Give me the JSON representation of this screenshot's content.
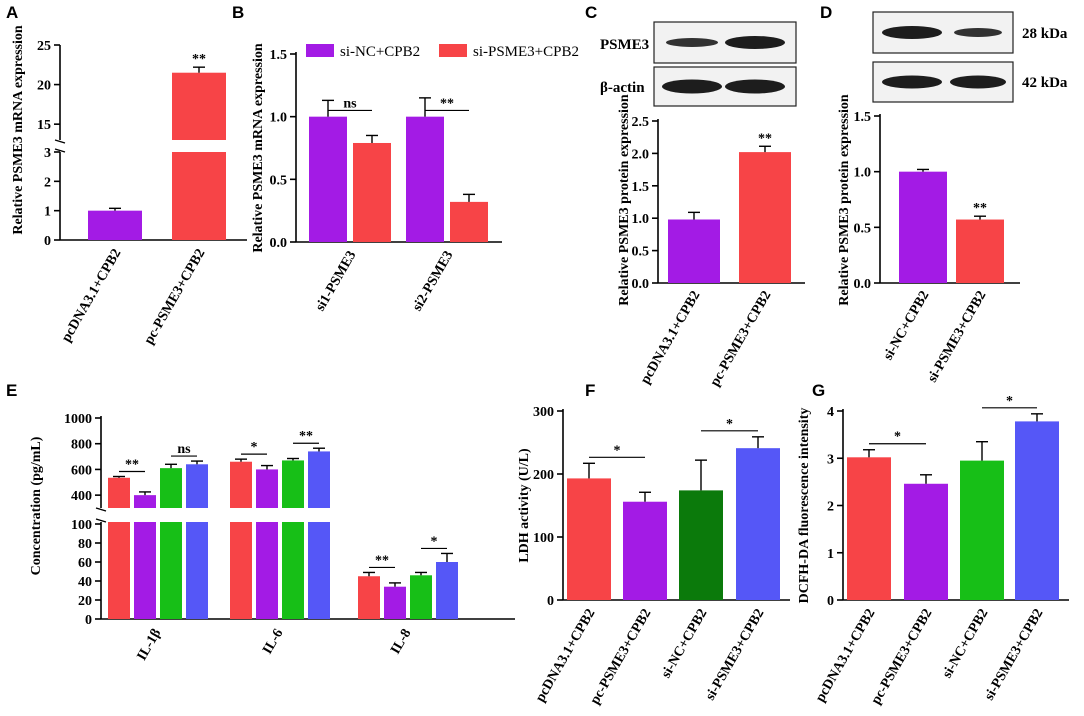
{
  "colors": {
    "red": "#f74447",
    "purple": "#a31be5",
    "green": "#17bf17",
    "blue": "#5557f7",
    "dkgreen": "#0b7a0b"
  },
  "panels": {
    "A": "A",
    "B": "B",
    "C": "C",
    "D": "D",
    "E": "E",
    "F": "F",
    "G": "G"
  },
  "chart_data": [
    {
      "id": "A",
      "type": "bar",
      "ylabel": "Relative PSME3 mRNA expression",
      "categories": [
        "pcDNA3.1+CPB2",
        "pc-PSME3+CPB2"
      ],
      "values": [
        1.0,
        21.5
      ],
      "errors": [
        0.08,
        0.7
      ],
      "ylim": [
        0,
        25
      ],
      "axis_break": [
        3,
        13
      ],
      "yticks_low": [
        0,
        1,
        2,
        3
      ],
      "yticks_high": [
        15,
        20,
        25
      ],
      "significance": [
        "",
        "**"
      ]
    },
    {
      "id": "B",
      "type": "bar",
      "ylabel": "Relative PSME3 mRNA expression",
      "categories": [
        "si1-PSME3",
        "si2-PSME3"
      ],
      "series": [
        {
          "name": "si-NC+CPB2",
          "values": [
            1.0,
            1.0
          ],
          "errors": [
            0.13,
            0.15
          ]
        },
        {
          "name": "si-PSME3+CPB2",
          "values": [
            0.79,
            0.32
          ],
          "errors": [
            0.06,
            0.06
          ]
        }
      ],
      "ylim": [
        0,
        1.5
      ],
      "yticks": [
        0.0,
        0.5,
        1.0,
        1.5
      ],
      "significance": [
        "ns",
        "**"
      ]
    },
    {
      "id": "C",
      "type": "bar",
      "ylabel": "Relative PSME3 protein expression",
      "categories": [
        "pcDNA3.1+CPB2",
        "pc-PSME3+CPB2"
      ],
      "values": [
        0.98,
        2.02
      ],
      "errors": [
        0.11,
        0.09
      ],
      "ylim": [
        0,
        2.5
      ],
      "yticks": [
        0.0,
        0.5,
        1.0,
        1.5,
        2.0,
        2.5
      ],
      "significance": [
        "",
        "**"
      ],
      "blot_labels": [
        "PSME3",
        "β-actin"
      ]
    },
    {
      "id": "D",
      "type": "bar",
      "ylabel": "Relative PSME3 protein expression",
      "categories": [
        "si-NC+CPB2",
        "si-PSME3+CPB2"
      ],
      "values": [
        1.0,
        0.57
      ],
      "errors": [
        0.02,
        0.03
      ],
      "ylim": [
        0,
        1.5
      ],
      "yticks": [
        0.0,
        0.5,
        1.0,
        1.5
      ],
      "significance": [
        "",
        "**"
      ],
      "blot_labels": [
        "28 kDa",
        "42 kDa"
      ]
    },
    {
      "id": "E",
      "type": "bar",
      "ylabel": "Concentration (pg/mL)",
      "categories": [
        "IL-1β",
        "IL-6",
        "IL-8"
      ],
      "series": [
        {
          "name": "pcDNA3.1+CPB2",
          "values": [
            535,
            660,
            45
          ],
          "errors": [
            10,
            20,
            4
          ]
        },
        {
          "name": "pc-PSME3+CPB2",
          "values": [
            400,
            600,
            34
          ],
          "errors": [
            25,
            30,
            4
          ]
        },
        {
          "name": "si-NC+CPB2",
          "values": [
            610,
            670,
            46
          ],
          "errors": [
            30,
            15,
            3
          ]
        },
        {
          "name": "si-PSME3+CPB2",
          "values": [
            640,
            740,
            60
          ],
          "errors": [
            25,
            25,
            9
          ]
        }
      ],
      "axis_break": [
        100,
        300
      ],
      "yticks_low": [
        0,
        20,
        40,
        60,
        80,
        100
      ],
      "yticks_high": [
        400,
        600,
        800,
        1000
      ],
      "significance": [
        [
          "**",
          "ns"
        ],
        [
          "*",
          "**"
        ],
        [
          "**",
          "*"
        ]
      ]
    },
    {
      "id": "F",
      "type": "bar",
      "ylabel": "LDH activity (U/L)",
      "categories": [
        "pcDNA3.1+CPB2",
        "pc-PSME3+CPB2",
        "si-NC+CPB2",
        "si-PSME3+CPB2"
      ],
      "values": [
        193,
        156,
        174,
        241
      ],
      "errors": [
        24,
        15,
        48,
        18
      ],
      "ylim": [
        0,
        300
      ],
      "yticks": [
        0,
        100,
        200,
        300
      ],
      "significance": [
        "*",
        "*"
      ]
    },
    {
      "id": "G",
      "type": "bar",
      "ylabel": "DCFH-DA fluorescence intensity",
      "categories": [
        "pcDNA3.1+CPB2",
        "pc-PSME3+CPB2",
        "si-NC+CPB2",
        "si-PSME3+CPB2"
      ],
      "values": [
        3.02,
        2.46,
        2.95,
        3.78
      ],
      "errors": [
        0.16,
        0.19,
        0.4,
        0.16
      ],
      "ylim": [
        0,
        4
      ],
      "yticks": [
        0,
        1,
        2,
        3,
        4
      ],
      "significance": [
        "*",
        "*"
      ]
    }
  ]
}
